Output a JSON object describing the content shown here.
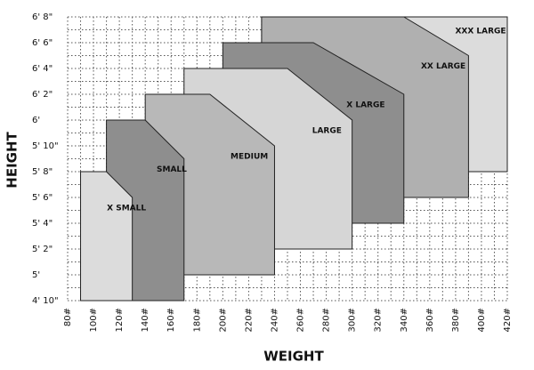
{
  "chart_data": {
    "type": "region",
    "x_label": "WEIGHT",
    "y_label": "HEIGHT",
    "xlim": [
      80,
      420
    ],
    "ylim": [
      58,
      80
    ],
    "xticks": [
      {
        "value": 80,
        "label": "80#"
      },
      {
        "value": 100,
        "label": "100#"
      },
      {
        "value": 120,
        "label": "120#"
      },
      {
        "value": 140,
        "label": "140#"
      },
      {
        "value": 160,
        "label": "160#"
      },
      {
        "value": 180,
        "label": "180#"
      },
      {
        "value": 200,
        "label": "200#"
      },
      {
        "value": 220,
        "label": "220#"
      },
      {
        "value": 240,
        "label": "240#"
      },
      {
        "value": 260,
        "label": "260#"
      },
      {
        "value": 280,
        "label": "280#"
      },
      {
        "value": 300,
        "label": "300#"
      },
      {
        "value": 320,
        "label": "320#"
      },
      {
        "value": 340,
        "label": "340#"
      },
      {
        "value": 360,
        "label": "360#"
      },
      {
        "value": 380,
        "label": "380#"
      },
      {
        "value": 400,
        "label": "400#"
      },
      {
        "value": 420,
        "label": "420#"
      }
    ],
    "yticks": [
      {
        "value": 58,
        "label": "4' 10\""
      },
      {
        "value": 60,
        "label": "5'"
      },
      {
        "value": 62,
        "label": "5' 2\""
      },
      {
        "value": 64,
        "label": "5' 4\""
      },
      {
        "value": 66,
        "label": "5' 6\""
      },
      {
        "value": 68,
        "label": "5' 8\""
      },
      {
        "value": 70,
        "label": "5' 10\""
      },
      {
        "value": 72,
        "label": "6'"
      },
      {
        "value": 74,
        "label": "6' 2\""
      },
      {
        "value": 76,
        "label": "6' 4\""
      },
      {
        "value": 78,
        "label": "6' 6\""
      },
      {
        "value": 80,
        "label": "6' 8\""
      }
    ],
    "grid": true,
    "regions": [
      {
        "name": "XXX LARGE",
        "color": "#dcdcdc",
        "points": [
          [
            230,
            68
          ],
          [
            230,
            80
          ],
          [
            420,
            80
          ],
          [
            420,
            68
          ]
        ]
      },
      {
        "name": "XX LARGE",
        "color": "#b0b0b0",
        "points": [
          [
            230,
            66
          ],
          [
            230,
            80
          ],
          [
            340,
            80
          ],
          [
            390,
            77
          ],
          [
            390,
            66
          ]
        ]
      },
      {
        "name": "X LARGE",
        "color": "#8e8e8e",
        "points": [
          [
            200,
            64
          ],
          [
            200,
            78
          ],
          [
            270,
            78
          ],
          [
            340,
            74
          ],
          [
            340,
            64
          ]
        ]
      },
      {
        "name": "LARGE",
        "color": "#d6d6d6",
        "points": [
          [
            170,
            62
          ],
          [
            170,
            76
          ],
          [
            250,
            76
          ],
          [
            300,
            72
          ],
          [
            300,
            62
          ]
        ]
      },
      {
        "name": "MEDIUM",
        "color": "#b8b8b8",
        "points": [
          [
            140,
            60
          ],
          [
            140,
            74
          ],
          [
            190,
            74
          ],
          [
            240,
            70
          ],
          [
            240,
            60
          ]
        ]
      },
      {
        "name": "SMALL",
        "color": "#8e8e8e",
        "points": [
          [
            110,
            58
          ],
          [
            110,
            72
          ],
          [
            140,
            72
          ],
          [
            170,
            69
          ],
          [
            170,
            58
          ]
        ]
      },
      {
        "name": "X SMALL",
        "color": "#dcdcdc",
        "points": [
          [
            90,
            58
          ],
          [
            90,
            68
          ],
          [
            110,
            68
          ],
          [
            130,
            66
          ],
          [
            130,
            58
          ]
        ]
      }
    ]
  }
}
